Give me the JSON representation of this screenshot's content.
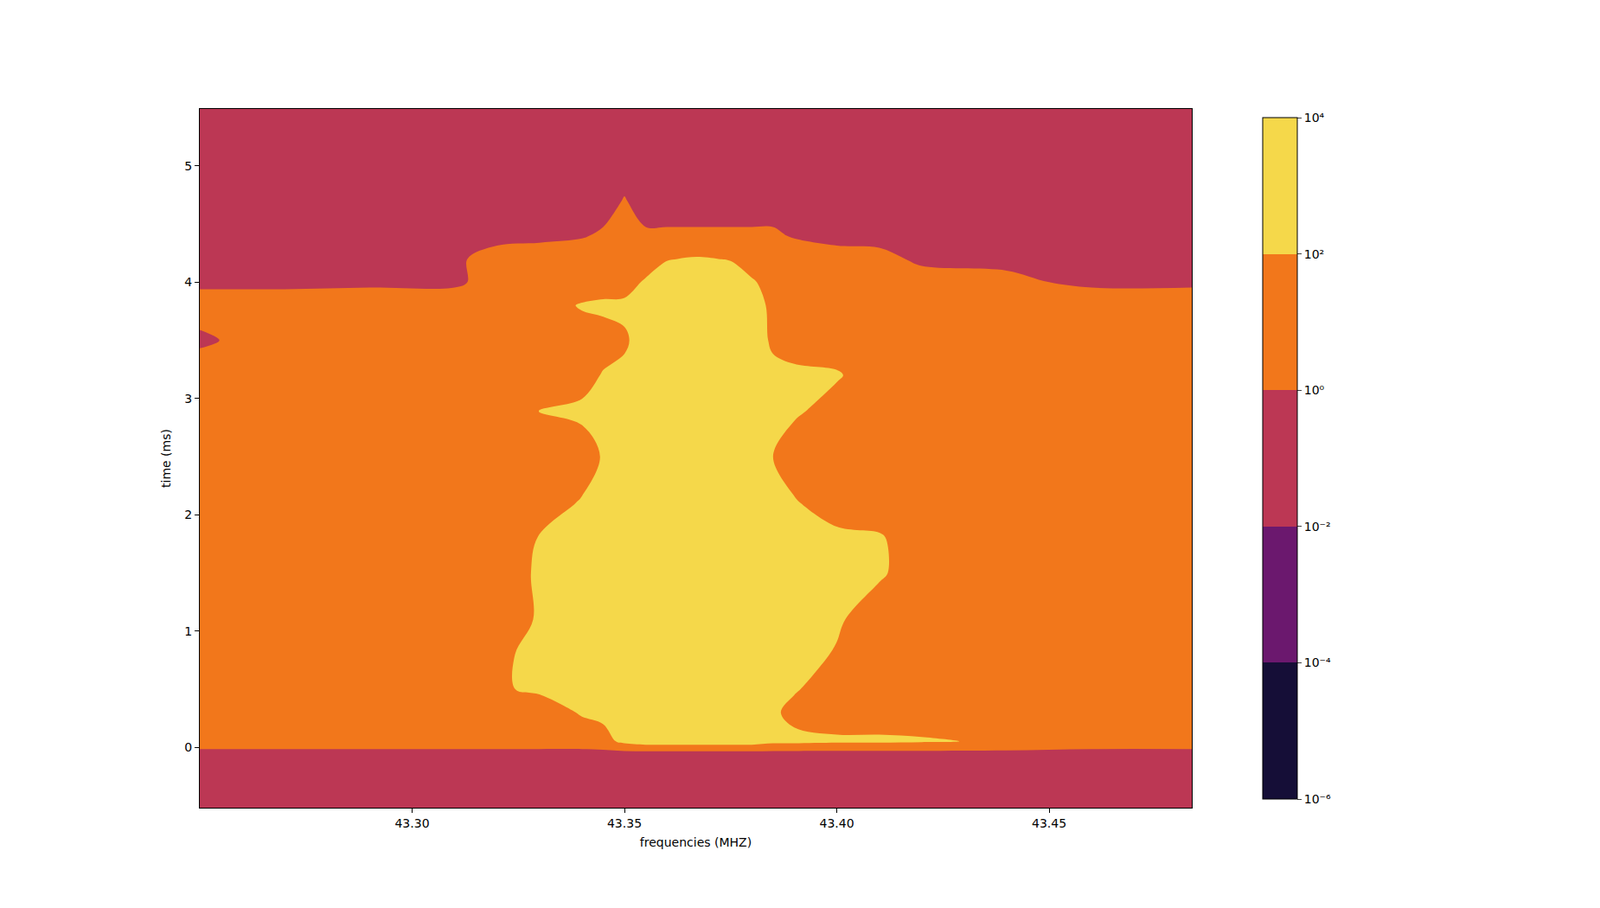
{
  "chart_data": {
    "type": "contour",
    "xlabel": "frequencies (MHZ)",
    "ylabel": "time (ms)",
    "log": true,
    "grid": false,
    "xlim": [
      43.25,
      43.4836
    ],
    "ylim": [
      -0.52,
      5.49
    ],
    "xticks": [
      {
        "value": 43.3,
        "label": "43.30"
      },
      {
        "value": 43.35,
        "label": "43.35"
      },
      {
        "value": 43.4,
        "label": "43.40"
      },
      {
        "value": 43.45,
        "label": "43.45"
      }
    ],
    "yticks": [
      0,
      1,
      2,
      3,
      4,
      5
    ],
    "colorbar_range": [
      1e-06,
      10000
    ],
    "colorbar_ticks": [
      {
        "value": 1e-06,
        "label": "10⁻⁶"
      },
      {
        "value": 0.0001,
        "label": "10⁻⁴"
      },
      {
        "value": 0.01,
        "label": "10⁻²"
      },
      {
        "value": 1,
        "label": "10⁰"
      },
      {
        "value": 100,
        "label": "10²"
      },
      {
        "value": 10000,
        "label": "10⁴"
      }
    ],
    "colors": [
      "#150e37",
      "#6b186e",
      "#bc3754",
      "#f2771b",
      "#f5d84a"
    ],
    "x": [
      43.25,
      43.27,
      43.29,
      43.31,
      43.32,
      43.33,
      43.34,
      43.345,
      43.35,
      43.355,
      43.36,
      43.367,
      43.375,
      43.38,
      43.385,
      43.39,
      43.4,
      43.41,
      43.42,
      43.44,
      43.46,
      43.4836
    ],
    "y": [
      -0.52,
      -0.2,
      -0.05,
      0.05,
      0.3,
      0.5,
      0.8,
      1.1,
      1.5,
      1.8,
      2.1,
      2.5,
      2.9,
      3.2,
      3.5,
      3.8,
      4.0,
      4.2,
      4.4,
      4.7,
      5.0,
      5.49
    ],
    "z": [
      [
        0.1,
        0.1,
        0.1,
        0.1,
        0.1,
        0.1,
        0.1,
        0.1,
        0.1,
        0.1,
        0.1,
        0.1,
        0.1,
        0.1,
        0.1,
        0.1,
        0.1,
        0.1,
        0.1,
        0.1,
        0.1,
        0.1
      ],
      [
        0.1,
        0.1,
        0.1,
        0.1,
        0.1,
        0.1,
        0.1,
        0.1,
        0.1,
        0.1,
        0.1,
        0.1,
        0.1,
        0.1,
        0.1,
        0.1,
        0.1,
        0.1,
        0.1,
        0.1,
        0.1,
        0.1
      ],
      [
        0.3,
        0.3,
        0.3,
        0.3,
        0.3,
        0.3,
        0.3,
        0.3,
        0.3,
        0.3,
        0.3,
        0.3,
        0.3,
        0.3,
        0.3,
        0.3,
        0.3,
        0.3,
        0.3,
        0.3,
        0.3,
        0.3
      ],
      [
        10,
        10,
        10,
        10,
        10,
        10,
        10,
        20,
        300,
        1000,
        1000,
        1000,
        1000,
        1000,
        300,
        300,
        200,
        200,
        150,
        60,
        10,
        10
      ],
      [
        10,
        8,
        10,
        10,
        10,
        10,
        150,
        300,
        300,
        1000,
        1000,
        1000,
        1000,
        1000,
        200,
        30,
        10,
        10,
        10,
        10,
        10,
        10
      ],
      [
        10,
        10,
        10,
        10,
        60,
        200,
        300,
        300,
        300,
        1000,
        1000,
        1000,
        1000,
        1000,
        300,
        150,
        10,
        10,
        10,
        10,
        10,
        10
      ],
      [
        10,
        10,
        10,
        10,
        60,
        200,
        300,
        300,
        300,
        1000,
        1000,
        1000,
        1000,
        1000,
        300,
        300,
        80,
        10,
        10,
        10,
        10,
        10
      ],
      [
        10,
        10,
        10,
        10,
        10,
        150,
        200,
        300,
        300,
        1000,
        1000,
        1000,
        1000,
        1000,
        300,
        300,
        150,
        20,
        10,
        10,
        10,
        10
      ],
      [
        10,
        10,
        10,
        10,
        20,
        150,
        300,
        300,
        300,
        1000,
        1000,
        1000,
        1000,
        1000,
        300,
        300,
        300,
        150,
        20,
        10,
        10,
        10
      ],
      [
        10,
        10,
        10,
        10,
        10,
        120,
        300,
        300,
        300,
        1000,
        1000,
        1000,
        1000,
        1000,
        300,
        300,
        300,
        150,
        10,
        10,
        10,
        10
      ],
      [
        10,
        10,
        10,
        10,
        10,
        10,
        150,
        300,
        300,
        1000,
        1000,
        1000,
        1000,
        1000,
        300,
        150,
        10,
        10,
        10,
        10,
        10,
        10
      ],
      [
        10,
        10,
        10,
        10,
        10,
        10,
        10,
        150,
        300,
        1000,
        1000,
        1000,
        1000,
        1000,
        100,
        10,
        10,
        10,
        10,
        10,
        10,
        10
      ],
      [
        10,
        10,
        10,
        10,
        10,
        120,
        300,
        300,
        300,
        1000,
        1000,
        1000,
        1000,
        1000,
        300,
        200,
        20,
        10,
        10,
        10,
        10,
        10
      ],
      [
        10,
        10,
        10,
        10,
        10,
        10,
        10,
        150,
        300,
        1000,
        1000,
        1000,
        1000,
        1000,
        300,
        300,
        150,
        10,
        10,
        10,
        10,
        10
      ],
      [
        0.5,
        10,
        10,
        10,
        10,
        10,
        10,
        10,
        50,
        1000,
        1000,
        1000,
        1000,
        1000,
        50,
        10,
        10,
        10,
        10,
        10,
        10,
        10
      ],
      [
        5,
        5,
        10,
        10,
        10,
        10,
        150,
        300,
        300,
        1000,
        1000,
        1000,
        1000,
        1000,
        30,
        10,
        10,
        10,
        10,
        10,
        10,
        10
      ],
      [
        0.5,
        0.5,
        0.5,
        0.5,
        5,
        5,
        5,
        5,
        10,
        200,
        1000,
        1000,
        1000,
        200,
        10,
        5,
        5,
        5,
        5,
        2,
        0.5,
        0.5
      ],
      [
        0.5,
        0.5,
        0.5,
        0.5,
        5,
        5,
        5,
        5,
        5,
        5,
        80,
        150,
        80,
        5,
        5,
        5,
        5,
        3,
        0.5,
        0.5,
        0.5,
        0.5
      ],
      [
        0.3,
        0.3,
        0.3,
        0.3,
        0.3,
        0.5,
        0.8,
        1.5,
        1.5,
        1.5,
        1.5,
        1.5,
        1.5,
        1.5,
        1.5,
        0.8,
        0.3,
        0.3,
        0.3,
        0.3,
        0.3,
        0.3
      ],
      [
        0.3,
        0.3,
        0.3,
        0.3,
        0.3,
        0.3,
        0.3,
        0.3,
        1.2,
        0.3,
        0.3,
        0.3,
        0.3,
        0.3,
        0.3,
        0.3,
        0.3,
        0.3,
        0.3,
        0.3,
        0.3,
        0.3
      ],
      [
        0.3,
        0.3,
        0.3,
        0.3,
        0.3,
        0.3,
        0.3,
        0.3,
        0.3,
        0.3,
        0.3,
        0.3,
        0.3,
        0.3,
        0.3,
        0.3,
        0.3,
        0.3,
        0.3,
        0.3,
        0.3,
        0.3
      ],
      [
        0.3,
        0.3,
        0.3,
        0.3,
        0.3,
        0.3,
        0.3,
        0.3,
        0.3,
        0.3,
        0.3,
        0.3,
        0.3,
        0.3,
        0.3,
        0.3,
        0.3,
        0.3,
        0.3,
        0.3,
        0.3,
        0.3
      ]
    ]
  }
}
